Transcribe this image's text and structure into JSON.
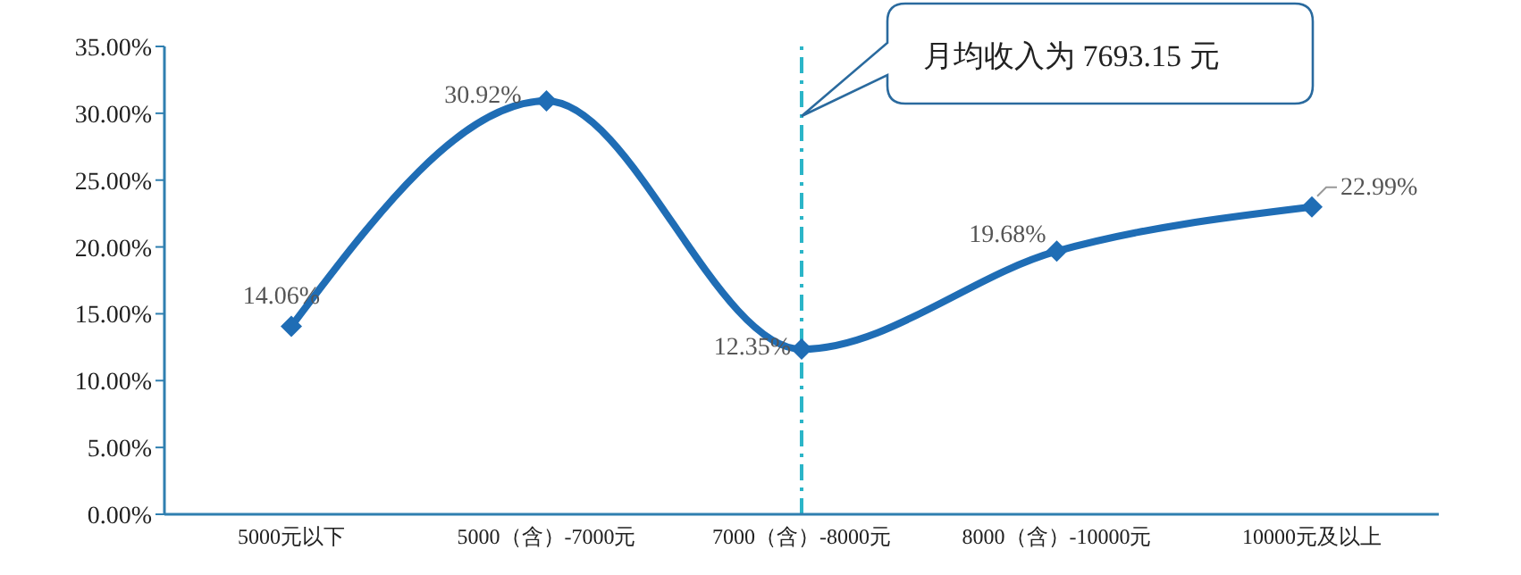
{
  "chart_data": {
    "type": "line",
    "categories": [
      "5000元以下",
      "5000（含）-7000元",
      "7000（含）-8000元",
      "8000（含）-10000元",
      "10000元及以上"
    ],
    "series": [
      {
        "color": "#1f6db5",
        "values": [
          14.06,
          30.92,
          12.35,
          19.68,
          22.99
        ],
        "value_labels": [
          "14.06%",
          "30.92%",
          "12.35%",
          "19.68%",
          "22.99%"
        ]
      }
    ],
    "ylim": [
      0,
      35
    ],
    "yticks": [
      {
        "value": 0,
        "label": "0.00%"
      },
      {
        "value": 5,
        "label": "5.00%"
      },
      {
        "value": 10,
        "label": "10.00%"
      },
      {
        "value": 15,
        "label": "15.00%"
      },
      {
        "value": 20,
        "label": "20.00%"
      },
      {
        "value": 25,
        "label": "25.00%"
      },
      {
        "value": 30,
        "label": "30.00%"
      },
      {
        "value": 35,
        "label": "35.00%"
      }
    ],
    "ref_lines": [
      {
        "axis": "x",
        "value": "7000（含）-8000元",
        "color": "#2bb5c8",
        "line_style": "dashed"
      }
    ],
    "annotations": [
      "月均收入为 7693.15 元"
    ],
    "marker": "diamond",
    "grid": false,
    "legend": false
  }
}
